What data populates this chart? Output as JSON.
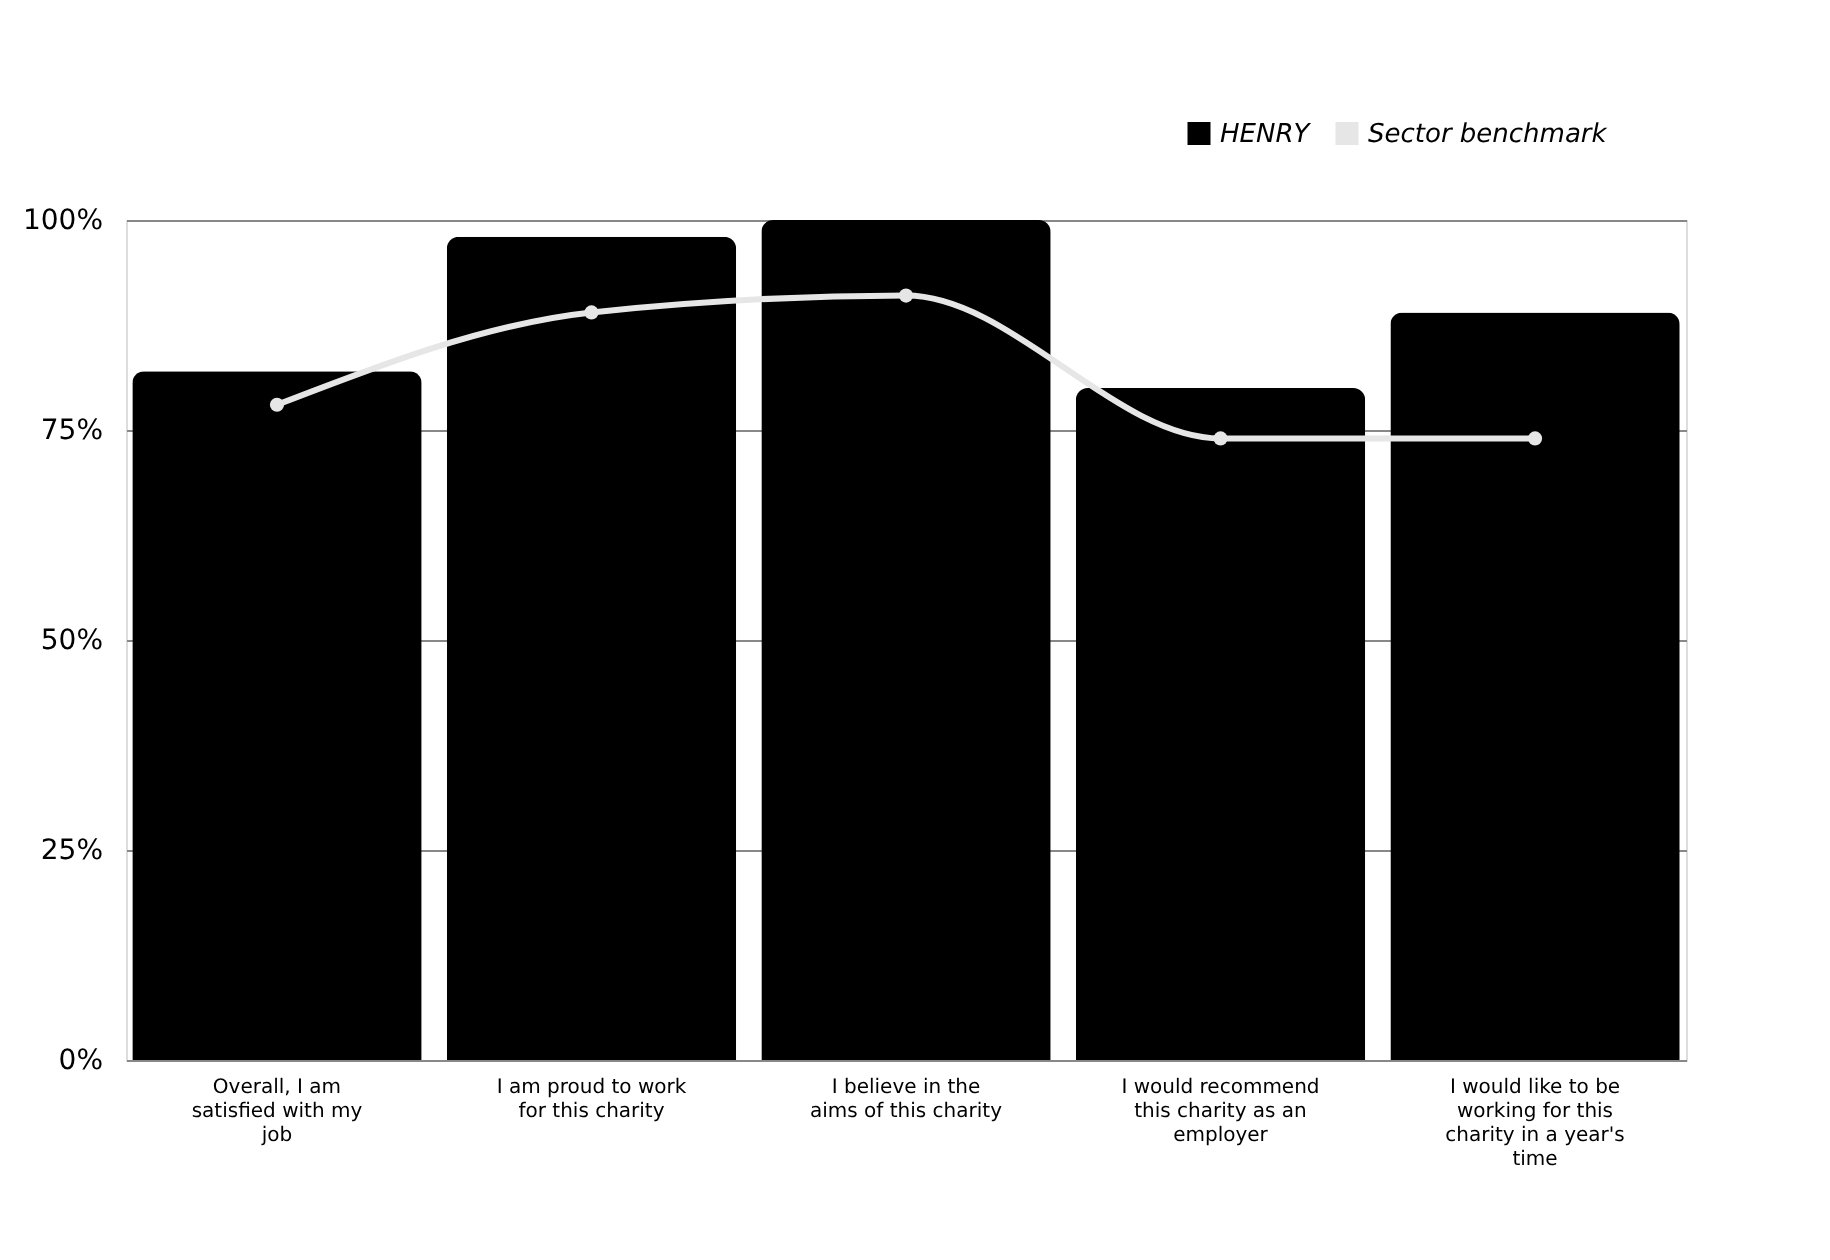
{
  "chart_data": {
    "type": "bar",
    "categories": [
      "Overall, I am satisfied with my job",
      "I am proud to work for this charity",
      "I believe in the aims of this charity",
      "I would recommend this charity as an employer",
      "I would like to be working for this charity in a year's time"
    ],
    "series": [
      {
        "name": "HENRY",
        "color": "#000000",
        "values": [
          82,
          98,
          100,
          80,
          89
        ]
      },
      {
        "name": "Sector benchmark",
        "type": "line",
        "color": "#e6e6e6",
        "values": [
          78,
          89,
          91,
          74,
          74
        ]
      }
    ],
    "ylim": [
      0,
      100
    ],
    "yticks": [
      {
        "value": 0,
        "label": "0%"
      },
      {
        "value": 25,
        "label": "25%"
      },
      {
        "value": 50,
        "label": "50%"
      },
      {
        "value": 75,
        "label": "75%"
      },
      {
        "value": 100,
        "label": "100%"
      }
    ],
    "grid": "y",
    "legend": "top right",
    "marker": "circle"
  }
}
